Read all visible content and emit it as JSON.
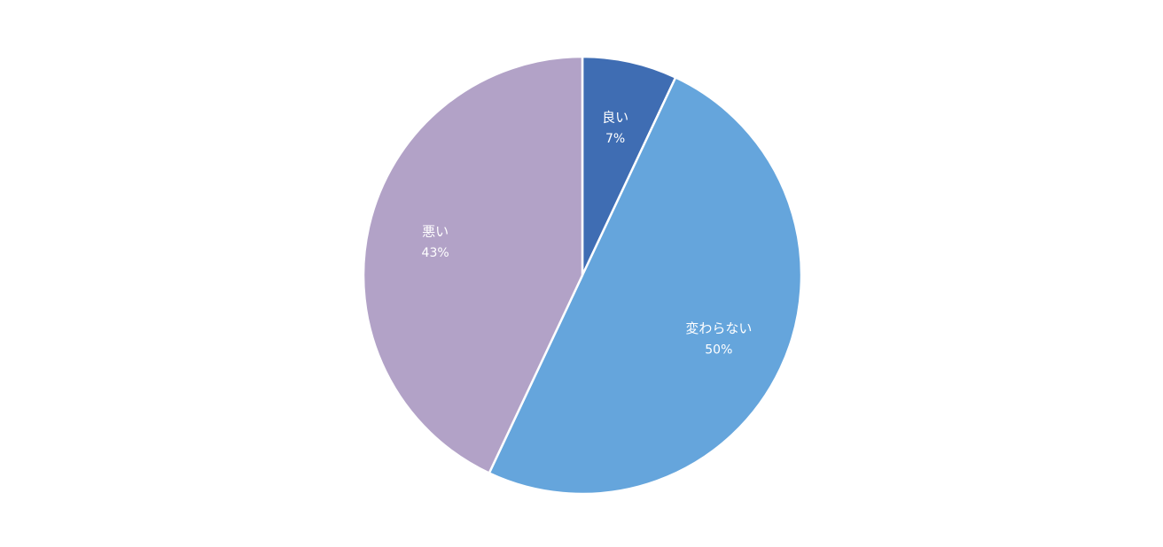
{
  "chart_data": {
    "type": "pie",
    "categories": [
      "良い",
      "変わらない",
      "悪い"
    ],
    "values": [
      7,
      50,
      43
    ],
    "value_labels": [
      "7%",
      "50%",
      "43%"
    ],
    "colors": [
      "#3f6db3",
      "#65a5dc",
      "#b2a2c7"
    ]
  }
}
